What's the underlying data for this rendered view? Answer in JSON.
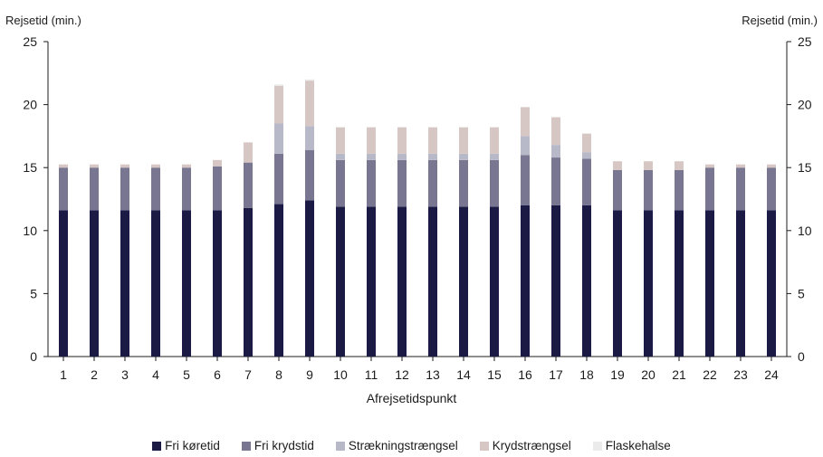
{
  "header": {
    "title_fragment": ""
  },
  "chart_data": {
    "type": "bar",
    "stacked": true,
    "xlabel": "Afrejsetidspunkt",
    "ylabel_left": "Rejsetid (min.)",
    "ylabel_right": "Rejsetid (min.)",
    "ylim": [
      0,
      25
    ],
    "yticks": [
      0,
      5,
      10,
      15,
      20,
      25
    ],
    "grid": false,
    "legend_position": "bottom",
    "categories": [
      "1",
      "2",
      "3",
      "4",
      "5",
      "6",
      "7",
      "8",
      "9",
      "10",
      "11",
      "12",
      "13",
      "14",
      "15",
      "16",
      "17",
      "18",
      "19",
      "20",
      "21",
      "22",
      "23",
      "24"
    ],
    "series": [
      {
        "name": "Fri køretid",
        "color": "#1b1a45",
        "values": [
          11.6,
          11.6,
          11.6,
          11.6,
          11.6,
          11.6,
          11.8,
          12.1,
          12.4,
          11.9,
          11.9,
          11.9,
          11.9,
          11.9,
          11.9,
          12.0,
          12.0,
          12.0,
          11.6,
          11.6,
          11.6,
          11.6,
          11.6,
          11.6
        ]
      },
      {
        "name": "Fri krydstid",
        "color": "#787691",
        "values": [
          3.4,
          3.4,
          3.4,
          3.4,
          3.4,
          3.5,
          3.6,
          4.0,
          4.0,
          3.7,
          3.7,
          3.7,
          3.7,
          3.7,
          3.7,
          4.0,
          3.8,
          3.7,
          3.2,
          3.2,
          3.2,
          3.4,
          3.4,
          3.4
        ]
      },
      {
        "name": "Strækningstrængsel",
        "color": "#b7b9c9",
        "values": [
          0,
          0,
          0,
          0,
          0,
          0,
          0,
          2.4,
          1.9,
          0.5,
          0.5,
          0.5,
          0.5,
          0.5,
          0.5,
          1.5,
          1.0,
          0.5,
          0,
          0,
          0,
          0,
          0,
          0
        ]
      },
      {
        "name": "Krydstrængsel",
        "color": "#d6c7c5",
        "values": [
          0.25,
          0.25,
          0.25,
          0.25,
          0.25,
          0.5,
          1.6,
          3.0,
          3.6,
          2.1,
          2.1,
          2.1,
          2.1,
          2.1,
          2.1,
          2.3,
          2.2,
          1.5,
          0.7,
          0.7,
          0.7,
          0.25,
          0.25,
          0.25
        ]
      },
      {
        "name": "Flaskehalse",
        "color": "#ebebeb",
        "values": [
          0,
          0,
          0,
          0,
          0,
          0,
          0,
          0.1,
          0.1,
          0,
          0,
          0,
          0,
          0,
          0,
          0,
          0,
          0,
          0,
          0,
          0,
          0,
          0,
          0
        ]
      }
    ]
  }
}
